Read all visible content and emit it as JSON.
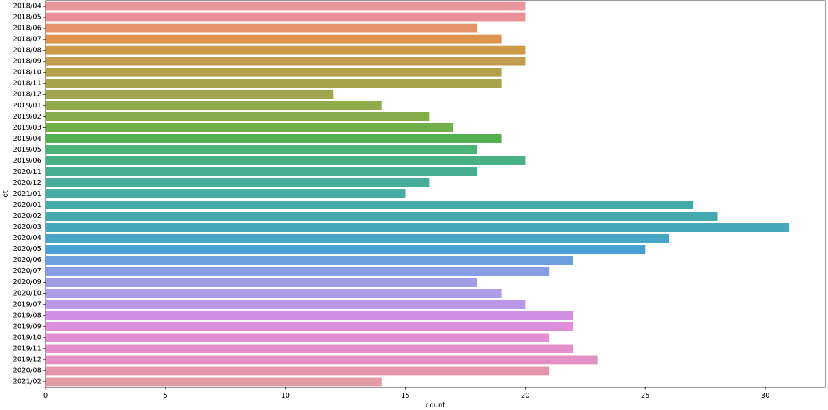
{
  "chart_data": {
    "type": "bar",
    "orientation": "horizontal",
    "title": "",
    "xlabel": "count",
    "ylabel": "dt",
    "xlim": [
      0,
      32.5
    ],
    "xticks": [
      0,
      5,
      10,
      15,
      20,
      25,
      30
    ],
    "grid": false,
    "categories": [
      "2018/04",
      "2018/05",
      "2018/06",
      "2018/07",
      "2018/08",
      "2018/09",
      "2018/10",
      "2018/11",
      "2018/12",
      "2019/01",
      "2019/02",
      "2019/03",
      "2019/04",
      "2019/05",
      "2019/06",
      "2020/11",
      "2020/12",
      "2021/01",
      "2020/01",
      "2020/02",
      "2020/03",
      "2020/04",
      "2020/05",
      "2020/06",
      "2020/07",
      "2020/09",
      "2020/10",
      "2019/07",
      "2019/08",
      "2019/09",
      "2019/10",
      "2019/11",
      "2019/12",
      "2020/08",
      "2021/02"
    ],
    "values": [
      20,
      20,
      18,
      19,
      20,
      20,
      19,
      19,
      12,
      14,
      16,
      17,
      19,
      18,
      20,
      18,
      16,
      15,
      27,
      28,
      31,
      26,
      25,
      22,
      21,
      18,
      19,
      20,
      22,
      22,
      21,
      22,
      23,
      21,
      14
    ],
    "colors": [
      "#e8969a",
      "#eb8f97",
      "#e5916a",
      "#dd934c",
      "#cd9a48",
      "#c29d4f",
      "#b4a14b",
      "#a9a34c",
      "#9fa64d",
      "#91aa4a",
      "#84ac4a",
      "#72ae4b",
      "#52b14f",
      "#4cb376",
      "#4ab085",
      "#48ae92",
      "#46ad9b",
      "#45aca2",
      "#44aaa9",
      "#45a9b0",
      "#46a8ba",
      "#47a6c5",
      "#48a1d2",
      "#6d9edf",
      "#879ce3",
      "#a09de6",
      "#ae9ce7",
      "#bc97e7",
      "#d18fe4",
      "#dd8ed8",
      "#e28ed4",
      "#e48fcb",
      "#e590c4",
      "#e495ab",
      "#e29ca4"
    ]
  }
}
